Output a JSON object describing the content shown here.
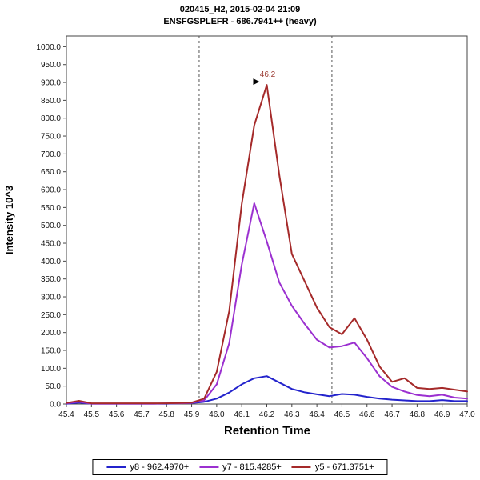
{
  "title": {
    "line1": "020415_H2, 2015-02-04 21:09",
    "line2": "ENSFGSPLEFR - 686.7941++ (heavy)"
  },
  "chart_data": {
    "type": "line",
    "title": "020415_H2, 2015-02-04 21:09",
    "subtitle": "ENSFGSPLEFR - 686.7941++ (heavy)",
    "xlabel": "Retention Time",
    "ylabel": "Intensity 10^3",
    "xlim": [
      45.4,
      47.0
    ],
    "ylim": [
      0,
      1030
    ],
    "x_tick_step": 0.1,
    "y_tick_step": 50,
    "y_tick_max": 1000,
    "grid": false,
    "legend_position": "bottom",
    "boundaries": [
      45.93,
      46.46
    ],
    "annotation": {
      "text": "46.2",
      "x": 46.2,
      "y": 893,
      "color": "#9b3a32"
    },
    "x": [
      45.4,
      45.45,
      45.5,
      45.55,
      45.6,
      45.65,
      45.7,
      45.75,
      45.8,
      45.85,
      45.9,
      45.95,
      46.0,
      46.05,
      46.1,
      46.15,
      46.2,
      46.25,
      46.3,
      46.35,
      46.4,
      46.45,
      46.5,
      46.55,
      46.6,
      46.65,
      46.7,
      46.75,
      46.8,
      46.85,
      46.9,
      46.95,
      47.0
    ],
    "series": [
      {
        "id": "y8",
        "name": "y8 - 962.4970+",
        "color": "#2323cc",
        "values": [
          1,
          4,
          1,
          1,
          1,
          1,
          1,
          1,
          1,
          2,
          3,
          6,
          15,
          32,
          55,
          72,
          78,
          60,
          42,
          33,
          27,
          22,
          28,
          26,
          20,
          15,
          12,
          10,
          8,
          8,
          11,
          8,
          8
        ]
      },
      {
        "id": "y7",
        "name": "y7 - 815.4285+",
        "color": "#9b30d0",
        "values": [
          2,
          6,
          1,
          1,
          1,
          1,
          1,
          1,
          2,
          2,
          3,
          10,
          55,
          170,
          390,
          562,
          455,
          340,
          275,
          225,
          180,
          158,
          162,
          172,
          128,
          78,
          48,
          35,
          25,
          22,
          26,
          18,
          15
        ]
      },
      {
        "id": "y5",
        "name": "y5 - 671.3751+",
        "color": "#a52a2a",
        "values": [
          3,
          9,
          2,
          2,
          2,
          2,
          2,
          2,
          2,
          3,
          4,
          15,
          90,
          260,
          560,
          780,
          893,
          640,
          420,
          345,
          270,
          215,
          195,
          240,
          180,
          105,
          62,
          72,
          45,
          42,
          45,
          40,
          35
        ]
      }
    ]
  }
}
